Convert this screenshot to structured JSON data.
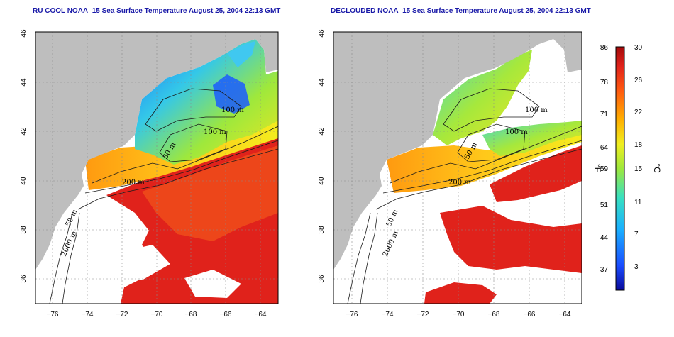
{
  "panels": [
    {
      "title": "RU COOL NOAA–15 Sea Surface Temperature August 25, 2004 22:13 GMT",
      "contour_labels": [
        "100 m",
        "100 m",
        "50 m",
        "200 m",
        "50 m",
        "2000 m"
      ]
    },
    {
      "title": "DECLOUDED NOAA–15 Sea Surface Temperature August 25, 2004 22:13 GMT",
      "contour_labels": [
        "100 m",
        "100 m",
        "50 m",
        "200 m",
        "50 m",
        "2000 m"
      ]
    }
  ],
  "axes": {
    "x_ticks": [
      "−76",
      "−74",
      "−72",
      "−70",
      "−68",
      "−66",
      "−64"
    ],
    "y_ticks": [
      "46",
      "44",
      "42",
      "40",
      "38",
      "36"
    ]
  },
  "colorbar": {
    "f_ticks": [
      "86",
      "78",
      "71",
      "64",
      "59",
      "51",
      "44",
      "37"
    ],
    "c_ticks": [
      "30",
      "26",
      "22",
      "18",
      "15",
      "11",
      "7",
      "3"
    ],
    "f_unit": "°F",
    "c_unit": "°C"
  },
  "colors": {
    "land": "#bebebe",
    "ocean_cloud": "#ffffff",
    "warm": "#e0221b",
    "title": "#1a1aa8"
  }
}
